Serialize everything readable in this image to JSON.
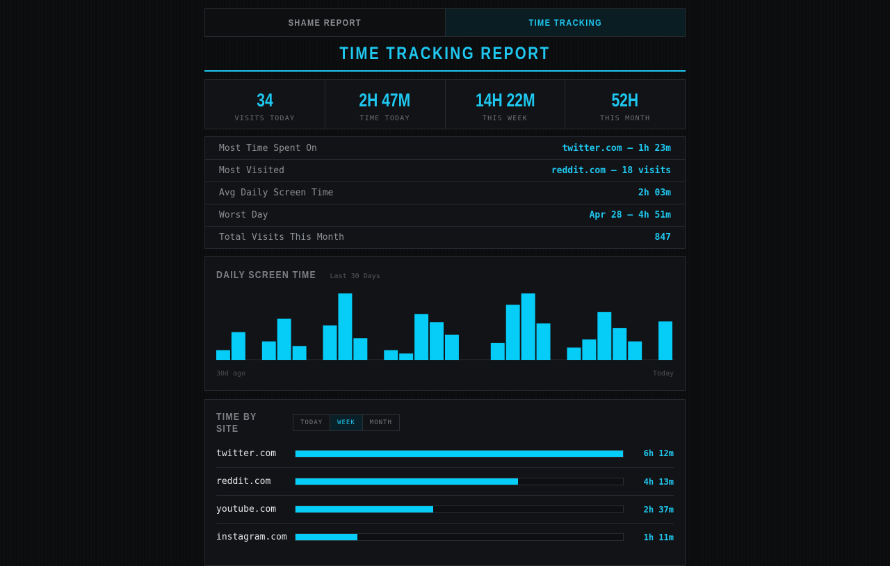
{
  "tabs": [
    {
      "label": "SHAME REPORT",
      "active": false
    },
    {
      "label": "TIME TRACKING",
      "active": true
    }
  ],
  "title": "TIME TRACKING REPORT",
  "stats": [
    {
      "value": "34",
      "label": "VISITS TODAY"
    },
    {
      "value": "2H 47M",
      "label": "TIME TODAY"
    },
    {
      "value": "14H 22M",
      "label": "THIS WEEK"
    },
    {
      "value": "52H",
      "label": "THIS MONTH"
    }
  ],
  "summary": [
    {
      "label": "Most Time Spent On",
      "value": "twitter.com — 1h 23m"
    },
    {
      "label": "Most Visited",
      "value": "reddit.com — 18 visits"
    },
    {
      "label": "Avg Daily Screen Time",
      "value": "2h 03m"
    },
    {
      "label": "Worst Day",
      "value": "Apr 28 — 4h 51m"
    },
    {
      "label": "Total Visits This Month",
      "value": "847"
    }
  ],
  "daily_chart": {
    "title": "DAILY SCREEN TIME",
    "subtitle": "Last 30 Days",
    "axis_start": "30d ago",
    "axis_end": "Today",
    "bar_color": "#05cdf8",
    "chart_data": {
      "type": "bar",
      "values": [
        0.15,
        0.42,
        0,
        0.28,
        0.62,
        0.21,
        0,
        0.52,
        1.0,
        0.33,
        0,
        0.15,
        0.1,
        0.69,
        0.57,
        0.38,
        0,
        0,
        0.26,
        0.83,
        1.0,
        0.55,
        0,
        0.19,
        0.31,
        0.72,
        0.48,
        0.28,
        0,
        0.58
      ],
      "ylim": [
        0,
        1
      ]
    }
  },
  "time_by_site": {
    "title": "TIME BY SITE",
    "ranges": [
      {
        "label": "TODAY",
        "active": false
      },
      {
        "label": "WEEK",
        "active": true
      },
      {
        "label": "MONTH",
        "active": false
      }
    ],
    "sites": [
      {
        "name": "twitter.com",
        "time": "6h 12m",
        "fraction": 1.0
      },
      {
        "name": "reddit.com",
        "time": "4h 13m",
        "fraction": 0.68
      },
      {
        "name": "youtube.com",
        "time": "2h 37m",
        "fraction": 0.42
      },
      {
        "name": "instagram.com",
        "time": "1h 11m",
        "fraction": 0.19
      }
    ]
  },
  "accent_color": "#1ec8f0"
}
